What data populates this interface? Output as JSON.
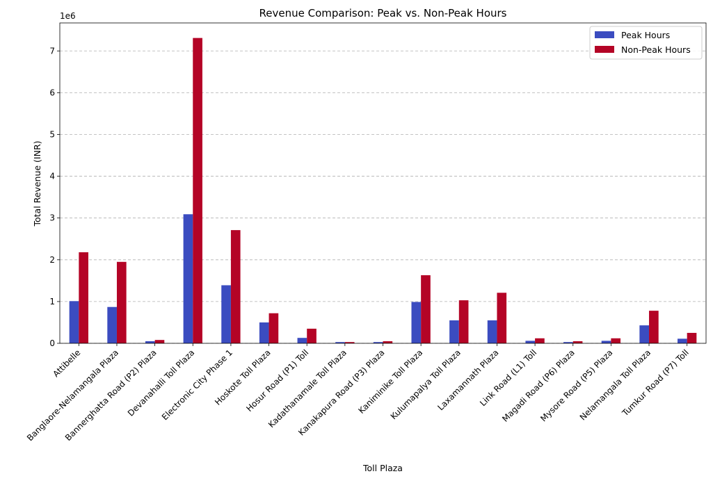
{
  "chart_data": {
    "type": "bar",
    "title": "Revenue Comparison: Peak vs. Non-Peak Hours",
    "xlabel": "Toll Plaza",
    "ylabel": "Total Revenue (INR)",
    "y_scale_label": "1e6",
    "ylim": [
      0,
      7.67
    ],
    "yticks": [
      0,
      1,
      2,
      3,
      4,
      5,
      6,
      7
    ],
    "grid": "y-dashed",
    "legend_position": "top-right",
    "categories": [
      "Attibelle",
      "Banglaore-Nelamangala Plaza",
      "Bannerghatta Road (P2) Plaza",
      "Devanahalli Toll Plaza",
      "Electronic  City Phase 1",
      "Hoskote Toll Plaza",
      "Hosur Road (P1) Toll",
      "Kadathanamale Toll Plaza",
      "Kanakapura Road (P3) Plaza",
      "Kaniminike Toll Plaza",
      "Kulumapalya Toll Plaza",
      "Laxamannath Plaza",
      "Link Road (L1) Toll",
      "Magadi Road (P6) Plaza",
      "Mysore Road (P5) Plaza",
      "Nelamangala Toll Plaza",
      "Tumkur Road (P7) Toll"
    ],
    "series": [
      {
        "name": "Peak Hours",
        "color": "#3b4cc0",
        "values": [
          1.01,
          0.87,
          0.05,
          3.09,
          1.39,
          0.5,
          0.13,
          0.03,
          0.03,
          0.99,
          0.55,
          0.55,
          0.06,
          0.03,
          0.06,
          0.43,
          0.11
        ]
      },
      {
        "name": "Non-Peak Hours",
        "color": "#b40426",
        "values": [
          2.18,
          1.95,
          0.08,
          7.31,
          2.71,
          0.72,
          0.35,
          0.03,
          0.05,
          1.63,
          1.03,
          1.21,
          0.12,
          0.05,
          0.12,
          0.78,
          0.25
        ]
      }
    ]
  }
}
